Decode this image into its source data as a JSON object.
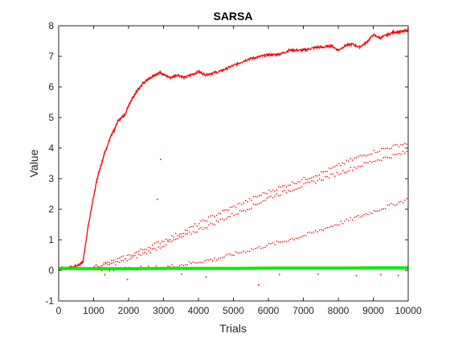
{
  "chart_data": {
    "type": "scatter",
    "title": "SARSA",
    "xlabel": "Trials",
    "ylabel": "Value",
    "xlim": [
      0,
      10000
    ],
    "ylim": [
      -1,
      8
    ],
    "xticks": [
      0,
      1000,
      2000,
      3000,
      4000,
      5000,
      6000,
      7000,
      8000,
      9000,
      10000
    ],
    "yticks": [
      -1,
      0,
      1,
      2,
      3,
      4,
      5,
      6,
      7,
      8
    ],
    "grid": false,
    "legend": "none",
    "colors": {
      "red": "#ff0000",
      "green": "#00ee00",
      "axes": "#262626"
    },
    "series": [
      {
        "color": "#ff0000",
        "style": "dense-line",
        "x": [
          0,
          200,
          400,
          600,
          700,
          800,
          900,
          1000,
          1100,
          1200,
          1300,
          1400,
          1500,
          1600,
          1700,
          1800,
          1900,
          2000,
          2100,
          2200,
          2300,
          2400,
          2500,
          2600,
          2700,
          2800,
          2900,
          3000,
          3200,
          3400,
          3600,
          3800,
          4000,
          4200,
          4400,
          4600,
          4800,
          5000,
          5200,
          5400,
          5600,
          5800,
          6000,
          6200,
          6400,
          6600,
          6800,
          7000,
          7200,
          7400,
          7600,
          7800,
          8000,
          8200,
          8400,
          8600,
          8800,
          9000,
          9200,
          9400,
          9600,
          9800,
          10000
        ],
        "y": [
          0.08,
          0.08,
          0.1,
          0.2,
          0.3,
          1.1,
          1.8,
          2.4,
          3.0,
          3.4,
          3.8,
          4.1,
          4.4,
          4.6,
          4.9,
          5.0,
          5.1,
          5.4,
          5.6,
          5.8,
          5.95,
          6.1,
          6.2,
          6.3,
          6.35,
          6.4,
          6.5,
          6.4,
          6.3,
          6.4,
          6.3,
          6.4,
          6.5,
          6.4,
          6.45,
          6.5,
          6.6,
          6.7,
          6.8,
          6.9,
          6.95,
          7.0,
          7.05,
          7.05,
          7.1,
          7.2,
          7.2,
          7.2,
          7.25,
          7.3,
          7.3,
          7.35,
          7.2,
          7.35,
          7.4,
          7.3,
          7.45,
          7.7,
          7.6,
          7.7,
          7.8,
          7.8,
          7.85
        ]
      },
      {
        "color": "#ff0000",
        "style": "sparse-dots",
        "x": [
          1000,
          1500,
          2000,
          2500,
          3000,
          3500,
          4000,
          4500,
          5000,
          5500,
          6000,
          6500,
          7000,
          7500,
          8000,
          8500,
          9000,
          9500,
          10000
        ],
        "y": [
          0.15,
          0.3,
          0.5,
          0.75,
          1.0,
          1.25,
          1.55,
          1.85,
          2.1,
          2.35,
          2.6,
          2.8,
          3.0,
          3.2,
          3.45,
          3.7,
          3.9,
          4.05,
          4.2
        ]
      },
      {
        "color": "#ff0000",
        "style": "sparse-dots",
        "x": [
          1000,
          1500,
          2000,
          2500,
          3000,
          3500,
          4000,
          4500,
          5000,
          5500,
          6000,
          6500,
          7000,
          7500,
          8000,
          8500,
          9000,
          9500,
          10000
        ],
        "y": [
          0.12,
          0.22,
          0.38,
          0.6,
          0.85,
          1.1,
          1.35,
          1.6,
          1.85,
          2.1,
          2.4,
          2.6,
          2.8,
          3.0,
          3.2,
          3.4,
          3.6,
          3.75,
          3.9
        ]
      },
      {
        "color": "#ff0000",
        "style": "sparse-dots",
        "x": [
          1000,
          2000,
          3000,
          3500,
          4000,
          4500,
          5000,
          5500,
          6000,
          6500,
          7000,
          7500,
          8000,
          8500,
          9000,
          9500,
          10000
        ],
        "y": [
          0.05,
          0.08,
          0.12,
          0.2,
          0.3,
          0.4,
          0.55,
          0.7,
          0.85,
          1.0,
          1.15,
          1.35,
          1.55,
          1.75,
          1.95,
          2.15,
          2.35
        ]
      },
      {
        "color": "#ff0000",
        "style": "outliers",
        "x": [
          2900,
          2800,
          1300,
          1950,
          3500,
          5700,
          4200,
          6300,
          7400,
          8500,
          9200,
          9700
        ],
        "y": [
          3.65,
          2.35,
          -0.12,
          -0.28,
          -0.1,
          -0.45,
          -0.2,
          -0.12,
          -0.1,
          -0.15,
          -0.12,
          -0.15
        ]
      },
      {
        "color": "#00ee00",
        "style": "band",
        "x": [
          0,
          1000,
          2000,
          3000,
          4000,
          5000,
          6000,
          7000,
          8000,
          9000,
          10000
        ],
        "y": [
          0.06,
          0.05,
          0.05,
          0.06,
          0.06,
          0.06,
          0.07,
          0.07,
          0.07,
          0.08,
          0.08
        ]
      }
    ]
  }
}
